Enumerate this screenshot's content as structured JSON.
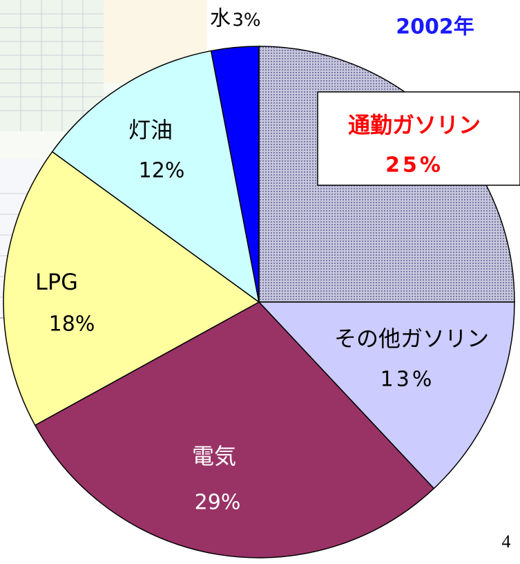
{
  "chart_data": {
    "type": "pie",
    "title": "2002年",
    "categories": [
      "通勤ガソリン",
      "その他ガソリン",
      "電気",
      "LPG",
      "灯油",
      "水"
    ],
    "values": [
      25,
      13,
      29,
      18,
      12,
      3
    ],
    "value_labels": [
      "25%",
      "13%",
      "29%",
      "18%",
      "12%",
      "3%"
    ],
    "colors": [
      "#a8a8cc",
      "#ccccff",
      "#993366",
      "#ffffa0",
      "#ccffff",
      "#0000ff"
    ]
  },
  "page_number": "4"
}
